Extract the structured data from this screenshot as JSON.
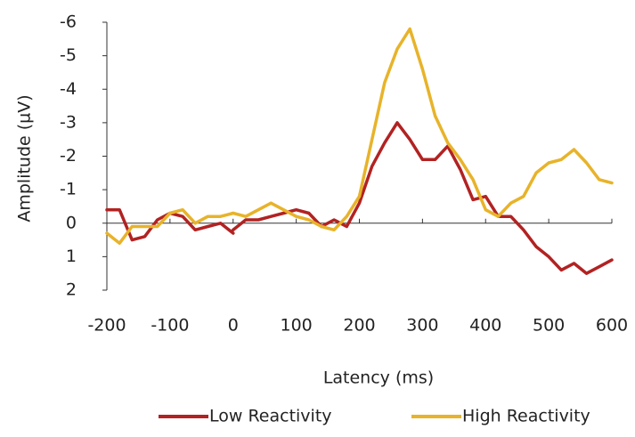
{
  "chart_data": {
    "type": "line",
    "xlabel": "Latency (ms)",
    "ylabel": "Amplitude (µV)",
    "x": [
      -200,
      -180,
      -160,
      -140,
      -120,
      -100,
      -80,
      -60,
      -40,
      -20,
      0,
      0,
      0,
      20,
      40,
      60,
      80,
      100,
      120,
      140,
      160,
      180,
      200,
      220,
      240,
      260,
      280,
      300,
      320,
      340,
      360,
      380,
      400,
      420,
      440,
      460,
      480,
      500,
      520,
      540,
      560,
      580,
      600
    ],
    "series": [
      {
        "name": "Low Reactivity",
        "color": "#b22222",
        "values": [
          -0.4,
          -0.4,
          0.5,
          0.4,
          -0.1,
          -0.3,
          -0.2,
          0.2,
          0.1,
          0.0,
          0.3,
          null,
          0.2,
          -0.1,
          -0.1,
          -0.2,
          -0.3,
          -0.4,
          -0.3,
          0.1,
          -0.1,
          0.1,
          -0.6,
          -1.7,
          -2.4,
          -3.0,
          -2.5,
          -1.9,
          -1.9,
          -2.3,
          -1.6,
          -0.7,
          -0.8,
          -0.2,
          -0.2,
          0.2,
          0.7,
          1.0,
          1.4,
          1.2,
          1.5,
          1.3,
          1.1
        ]
      },
      {
        "name": "High Reactivity",
        "color": "#e8b32a",
        "values": [
          0.3,
          0.6,
          0.1,
          0.1,
          0.1,
          -0.3,
          -0.4,
          0.0,
          -0.2,
          -0.2,
          -0.3,
          null,
          -0.3,
          -0.2,
          -0.4,
          -0.6,
          -0.4,
          -0.2,
          -0.1,
          0.1,
          0.2,
          -0.2,
          -0.8,
          -2.5,
          -4.2,
          -5.2,
          -5.8,
          -4.6,
          -3.2,
          -2.4,
          -1.9,
          -1.3,
          -0.4,
          -0.2,
          -0.6,
          -0.8,
          -1.5,
          -1.8,
          -1.9,
          -2.2,
          -1.8,
          -1.3,
          -1.2
        ]
      }
    ],
    "xlim": [
      -200,
      600
    ],
    "xticks": [
      -200,
      -100,
      0,
      100,
      200,
      300,
      400,
      500,
      600
    ],
    "ylim": [
      2,
      -6
    ],
    "yticks": [
      -6,
      -5,
      -4,
      -3,
      -2,
      -1,
      0,
      1,
      2
    ],
    "legend": "bottom"
  }
}
